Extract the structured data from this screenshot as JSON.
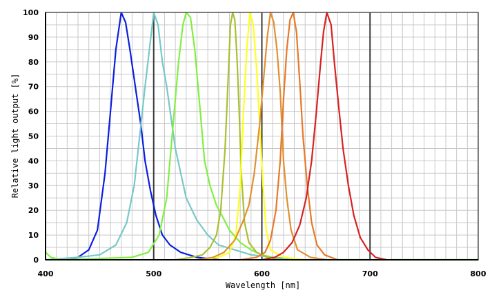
{
  "chart_data": {
    "type": "line",
    "title": "",
    "xlabel": "Wavelength [nm]",
    "ylabel": "Relative light output [%]",
    "xlim": [
      400,
      800
    ],
    "ylim": [
      0,
      100
    ],
    "x_ticks": [
      400,
      500,
      600,
      700,
      800
    ],
    "y_ticks": [
      0,
      10,
      20,
      30,
      40,
      50,
      60,
      70,
      80,
      90,
      100
    ],
    "x_minor_step": 10,
    "y_minor_step": 5,
    "major_vertical_lines": [
      500,
      600,
      700
    ],
    "grid": true,
    "legend": "none",
    "series": [
      {
        "color": "#0a1ee0",
        "points": [
          [
            420,
            0
          ],
          [
            430,
            1
          ],
          [
            440,
            4
          ],
          [
            448,
            12
          ],
          [
            455,
            35
          ],
          [
            460,
            60
          ],
          [
            465,
            85
          ],
          [
            470,
            100
          ],
          [
            474,
            96
          ],
          [
            478,
            85
          ],
          [
            483,
            70
          ],
          [
            488,
            55
          ],
          [
            492,
            40
          ],
          [
            497,
            28
          ],
          [
            502,
            18
          ],
          [
            508,
            10
          ],
          [
            515,
            6
          ],
          [
            525,
            3
          ],
          [
            540,
            1
          ],
          [
            560,
            0
          ]
        ]
      },
      {
        "color": "#78c8c8",
        "points": [
          [
            400,
            0
          ],
          [
            430,
            1
          ],
          [
            450,
            2
          ],
          [
            465,
            6
          ],
          [
            475,
            15
          ],
          [
            482,
            30
          ],
          [
            487,
            50
          ],
          [
            492,
            70
          ],
          [
            496,
            85
          ],
          [
            500,
            100
          ],
          [
            504,
            95
          ],
          [
            508,
            80
          ],
          [
            512,
            70
          ],
          [
            520,
            45
          ],
          [
            530,
            25
          ],
          [
            540,
            16
          ],
          [
            550,
            10
          ],
          [
            560,
            6
          ],
          [
            575,
            4
          ],
          [
            590,
            2
          ],
          [
            610,
            1
          ],
          [
            640,
            0
          ],
          [
            800,
            0
          ]
        ]
      },
      {
        "color": "#80f040",
        "points": [
          [
            400,
            3
          ],
          [
            405,
            1
          ],
          [
            415,
            0
          ],
          [
            480,
            1
          ],
          [
            495,
            3
          ],
          [
            505,
            10
          ],
          [
            512,
            25
          ],
          [
            518,
            55
          ],
          [
            523,
            80
          ],
          [
            527,
            95
          ],
          [
            530,
            100
          ],
          [
            534,
            98
          ],
          [
            538,
            85
          ],
          [
            543,
            60
          ],
          [
            547,
            40
          ],
          [
            552,
            30
          ],
          [
            558,
            22
          ],
          [
            563,
            18
          ],
          [
            570,
            12
          ],
          [
            580,
            7
          ],
          [
            590,
            4
          ],
          [
            600,
            2
          ],
          [
            620,
            0
          ],
          [
            800,
            0
          ]
        ]
      },
      {
        "color": "#a8c030",
        "points": [
          [
            520,
            0
          ],
          [
            535,
            1
          ],
          [
            545,
            2
          ],
          [
            552,
            5
          ],
          [
            558,
            10
          ],
          [
            562,
            20
          ],
          [
            566,
            45
          ],
          [
            569,
            75
          ],
          [
            571,
            95
          ],
          [
            573,
            100
          ],
          [
            575,
            97
          ],
          [
            577,
            82
          ],
          [
            579,
            60
          ],
          [
            581,
            35
          ],
          [
            584,
            15
          ],
          [
            588,
            7
          ],
          [
            595,
            3
          ],
          [
            605,
            1
          ],
          [
            620,
            0
          ]
        ]
      },
      {
        "color": "#ffff20",
        "points": [
          [
            545,
            0
          ],
          [
            560,
            1
          ],
          [
            570,
            3
          ],
          [
            576,
            10
          ],
          [
            580,
            30
          ],
          [
            583,
            60
          ],
          [
            586,
            85
          ],
          [
            589,
            100
          ],
          [
            592,
            95
          ],
          [
            595,
            78
          ],
          [
            598,
            55
          ],
          [
            601,
            30
          ],
          [
            604,
            12
          ],
          [
            608,
            4
          ],
          [
            620,
            1
          ],
          [
            640,
            0
          ]
        ]
      },
      {
        "color": "#e09030",
        "points": [
          [
            540,
            0
          ],
          [
            555,
            1
          ],
          [
            565,
            3
          ],
          [
            575,
            8
          ],
          [
            582,
            15
          ],
          [
            588,
            22
          ],
          [
            593,
            35
          ],
          [
            598,
            55
          ],
          [
            602,
            75
          ],
          [
            605,
            90
          ],
          [
            608,
            100
          ],
          [
            611,
            96
          ],
          [
            614,
            85
          ],
          [
            617,
            68
          ],
          [
            620,
            40
          ],
          [
            623,
            25
          ],
          [
            627,
            12
          ],
          [
            633,
            4
          ],
          [
            645,
            1
          ],
          [
            660,
            0
          ]
        ]
      },
      {
        "color": "#e87828",
        "points": [
          [
            580,
            0
          ],
          [
            595,
            1
          ],
          [
            603,
            3
          ],
          [
            608,
            8
          ],
          [
            613,
            20
          ],
          [
            617,
            40
          ],
          [
            620,
            65
          ],
          [
            623,
            85
          ],
          [
            626,
            97
          ],
          [
            629,
            100
          ],
          [
            632,
            92
          ],
          [
            635,
            72
          ],
          [
            638,
            50
          ],
          [
            642,
            30
          ],
          [
            646,
            15
          ],
          [
            651,
            6
          ],
          [
            658,
            2
          ],
          [
            670,
            0
          ]
        ]
      },
      {
        "color": "#d82020",
        "points": [
          [
            600,
            0
          ],
          [
            612,
            1
          ],
          [
            620,
            3
          ],
          [
            628,
            7
          ],
          [
            635,
            14
          ],
          [
            641,
            25
          ],
          [
            646,
            40
          ],
          [
            650,
            58
          ],
          [
            654,
            78
          ],
          [
            657,
            92
          ],
          [
            660,
            100
          ],
          [
            664,
            95
          ],
          [
            667,
            80
          ],
          [
            671,
            62
          ],
          [
            675,
            45
          ],
          [
            680,
            30
          ],
          [
            685,
            18
          ],
          [
            691,
            9
          ],
          [
            698,
            4
          ],
          [
            705,
            1
          ],
          [
            715,
            0
          ]
        ]
      }
    ]
  }
}
